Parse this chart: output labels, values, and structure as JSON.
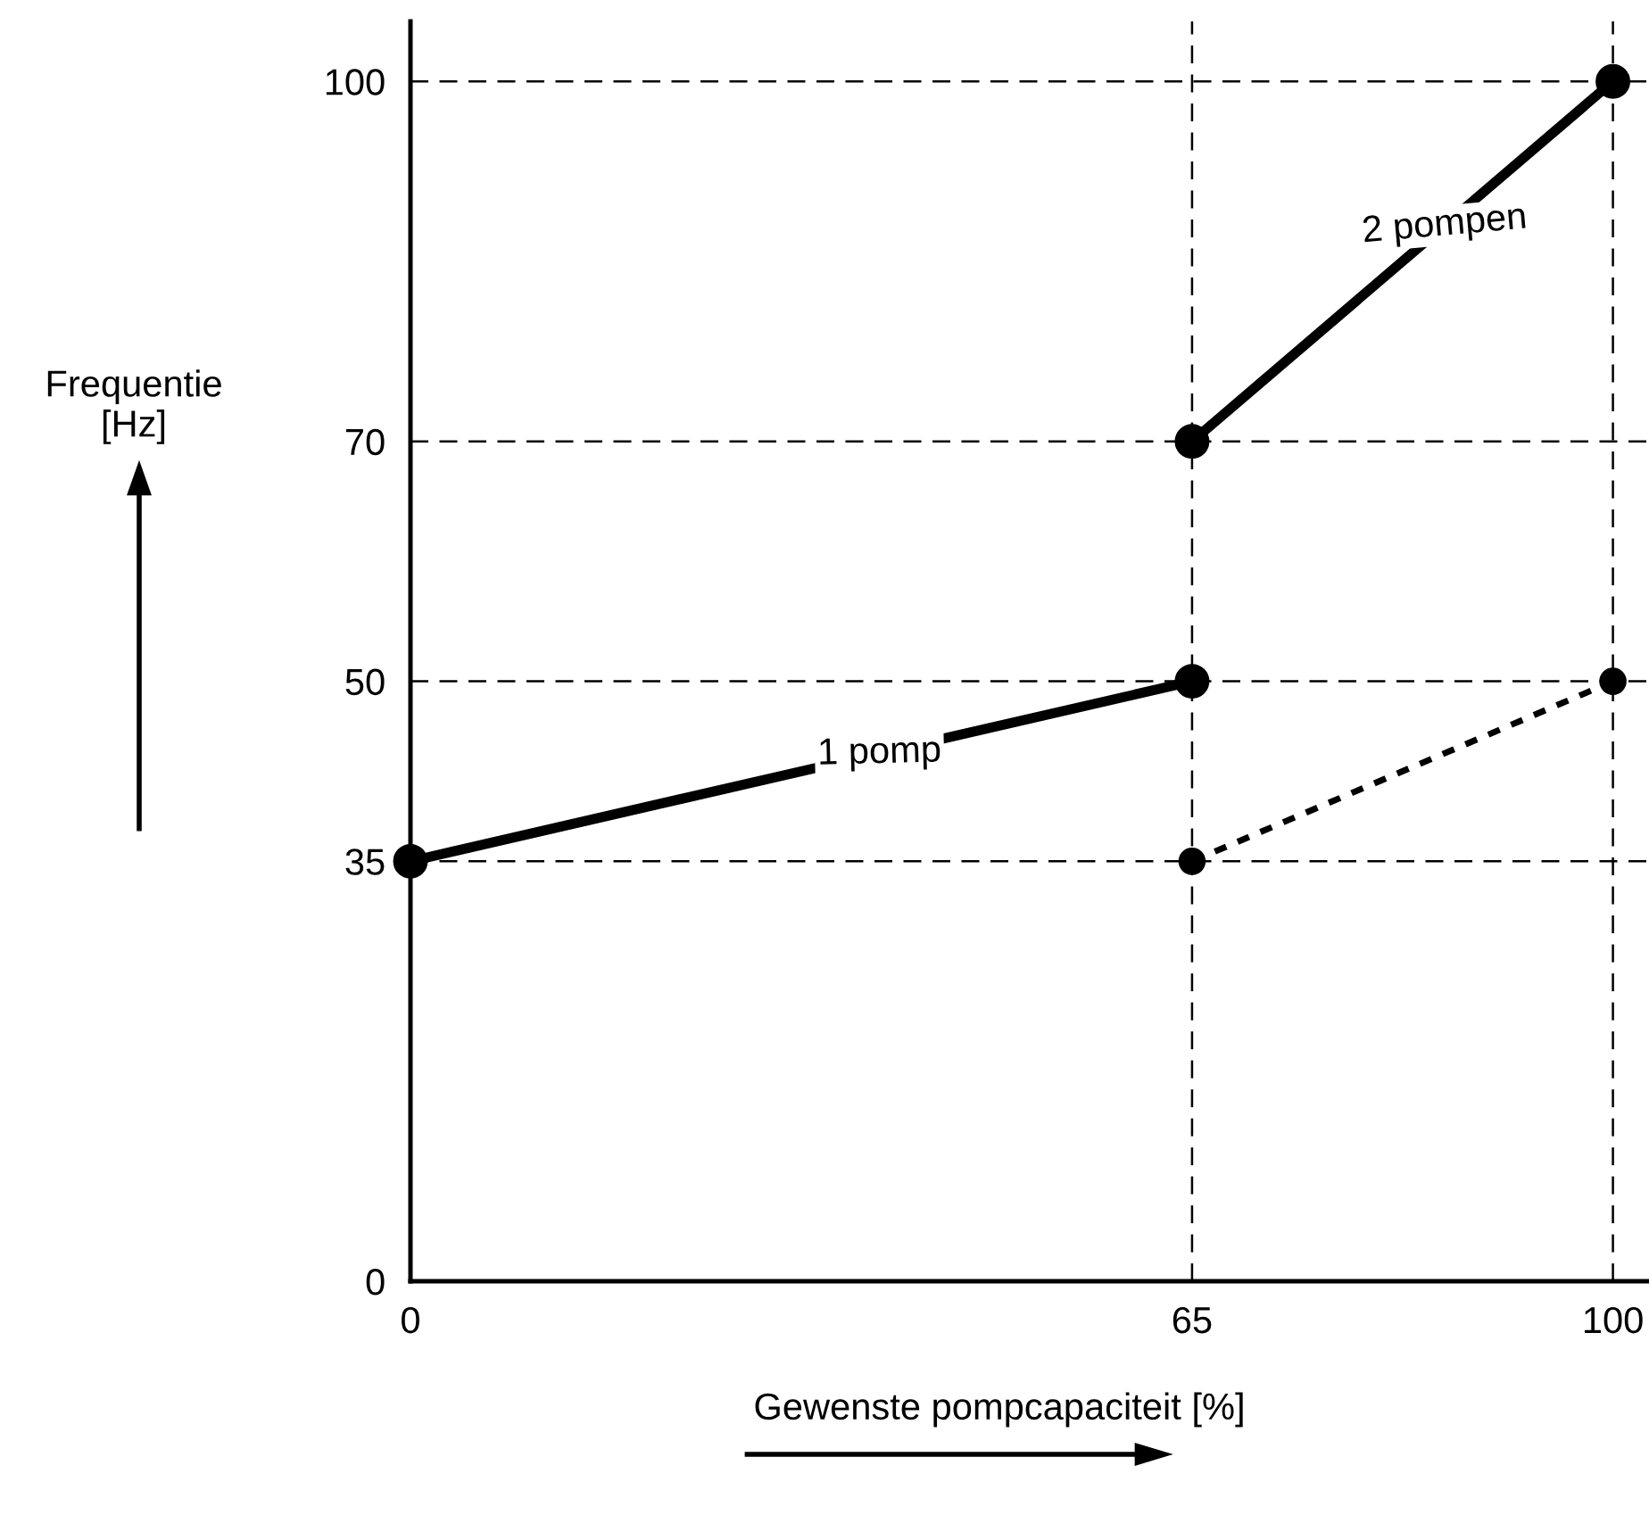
{
  "chart_data": {
    "type": "line",
    "xlabel": "Gewenste pompcapaciteit [%]",
    "ylabel": "Frequentie\n[Hz]",
    "series": [
      {
        "name": "1 pomp",
        "color": "#000000",
        "x": [
          0,
          65
        ],
        "values": [
          35,
          50
        ],
        "marker": "circle",
        "line_style": "solid"
      },
      {
        "name": "2 pompen",
        "color": "#000000",
        "x": [
          65,
          100
        ],
        "values": [
          70,
          100
        ],
        "marker": "circle",
        "line_style": "solid"
      },
      {
        "color": "#000000",
        "x": [
          65,
          100
        ],
        "values": [
          35,
          50
        ],
        "marker": "circle",
        "line_style": "dotted"
      }
    ],
    "xlim": [
      0,
      103
    ],
    "ylim": [
      0,
      105
    ],
    "xticks": [
      0,
      65,
      100
    ],
    "yticks": [
      0,
      35,
      50,
      70,
      100
    ],
    "ref_lines": [
      {
        "axis": "y",
        "value": 35,
        "color": "#000000",
        "line_style": "dashed"
      },
      {
        "axis": "y",
        "value": 50,
        "color": "#000000",
        "line_style": "dashed"
      },
      {
        "axis": "y",
        "value": 70,
        "color": "#000000",
        "line_style": "dashed"
      },
      {
        "axis": "y",
        "value": 100,
        "color": "#000000",
        "line_style": "dashed"
      },
      {
        "axis": "x",
        "value": 65,
        "color": "#000000",
        "line_style": "dashed"
      },
      {
        "axis": "x",
        "value": 100,
        "color": "#000000",
        "line_style": "dashed"
      }
    ],
    "grid": false,
    "legend": false
  }
}
